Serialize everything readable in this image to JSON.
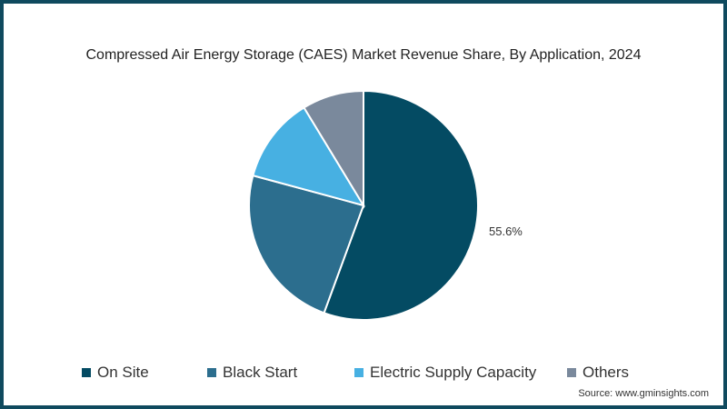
{
  "chart_data": {
    "type": "pie",
    "title": "Compressed Air Energy Storage (CAES) Market Revenue Share, By Application, 2024",
    "categories": [
      "On Site",
      "Black Start",
      "Electric Supply Capacity",
      "Others"
    ],
    "values": [
      55.6,
      23.6,
      12.1,
      8.7
    ],
    "colors": [
      "#044b63",
      "#2c6e8e",
      "#47b0e2",
      "#7a899c"
    ],
    "data_labels": [
      "55.6%",
      "",
      "",
      ""
    ],
    "legend_position": "bottom",
    "start_angle_deg": 0,
    "direction": "clockwise"
  },
  "title": "Compressed Air Energy Storage (CAES) Market Revenue Share, By Application, 2024",
  "label_on_site": "55.6%",
  "legend": [
    {
      "label": "On Site",
      "color": "#044b63"
    },
    {
      "label": "Black Start",
      "color": "#2c6e8e"
    },
    {
      "label": "Electric Supply Capacity",
      "color": "#47b0e2"
    },
    {
      "label": "Others",
      "color": "#7a899c"
    }
  ],
  "source": "Source: www.gminsights.com"
}
